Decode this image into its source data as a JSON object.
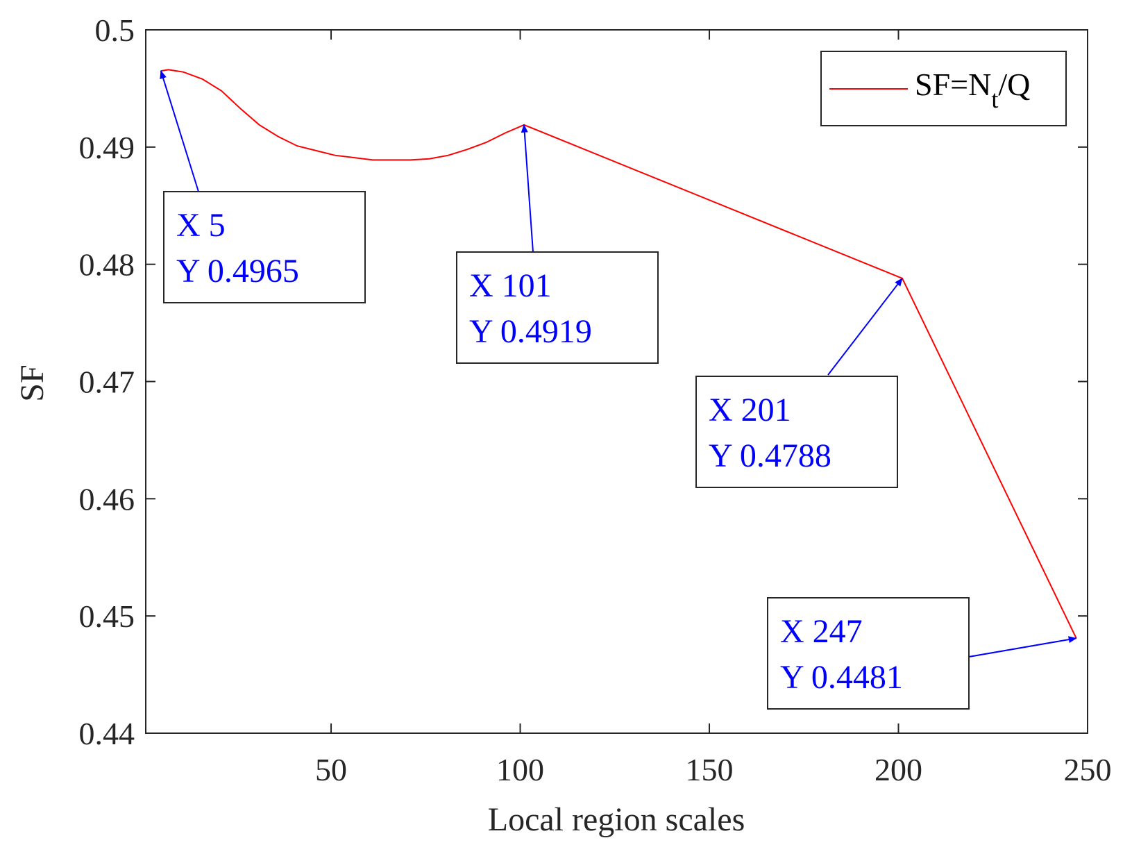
{
  "chart_data": {
    "type": "line",
    "xlabel": "Local region scales",
    "ylabel": "SF",
    "xlim": [
      1,
      250
    ],
    "ylim": [
      0.44,
      0.5
    ],
    "x_ticks": [
      50,
      100,
      150,
      200,
      250
    ],
    "y_ticks": [
      0.44,
      0.45,
      0.46,
      0.47,
      0.48,
      0.49,
      0.5
    ],
    "y_tick_labels": [
      "0.44",
      "0.45",
      "0.46",
      "0.47",
      "0.48",
      "0.49",
      "0.5"
    ],
    "grid": false,
    "legend_position": "top-right",
    "series": [
      {
        "name": "SF=N_t/Q",
        "color": "#ff0000",
        "x": [
          5,
          7,
          11,
          16,
          21,
          26,
          31,
          36,
          41,
          46,
          51,
          56,
          61,
          66,
          71,
          76,
          81,
          86,
          91,
          96,
          101,
          201,
          247
        ],
        "y": [
          0.4965,
          0.4966,
          0.4964,
          0.4958,
          0.4948,
          0.4933,
          0.4919,
          0.4909,
          0.4901,
          0.4897,
          0.4893,
          0.4891,
          0.4889,
          0.4889,
          0.4889,
          0.489,
          0.4893,
          0.4898,
          0.4904,
          0.4912,
          0.4919,
          0.4788,
          0.4481
        ]
      }
    ],
    "legend": {
      "prefix": "SF=N",
      "subscript": "t",
      "suffix": "/Q"
    },
    "annotations": [
      {
        "x": 5,
        "y": 0.4965,
        "line1": "X 5",
        "line2": "Y 0.4965"
      },
      {
        "x": 101,
        "y": 0.4919,
        "line1": "X 101",
        "line2": "Y 0.4919"
      },
      {
        "x": 201,
        "y": 0.4788,
        "line1": "X 201",
        "line2": "Y 0.4788"
      },
      {
        "x": 247,
        "y": 0.4481,
        "line1": "X 247",
        "line2": "Y 0.4481"
      }
    ],
    "annotation_color": "#0000ff"
  }
}
